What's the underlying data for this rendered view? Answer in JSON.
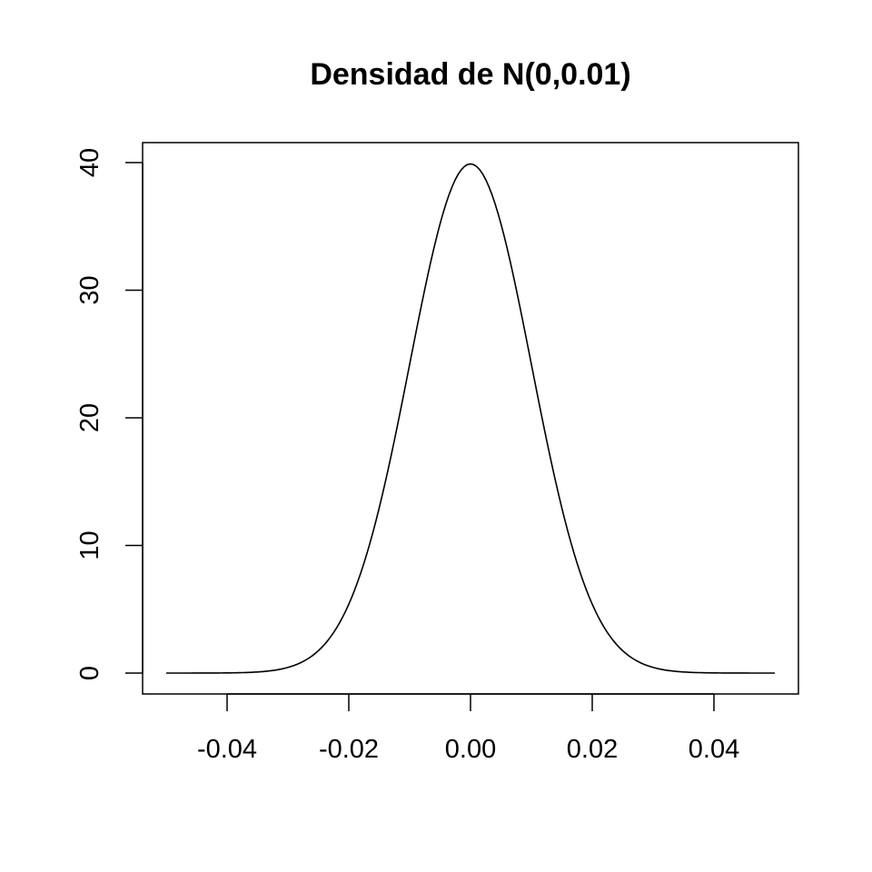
{
  "chart_data": {
    "type": "line",
    "title": "Densidad de N(0,0.01)",
    "xlabel": "",
    "ylabel": "",
    "distribution": {
      "mean": 0,
      "sd": 0.01
    },
    "xlim": [
      -0.05,
      0.05
    ],
    "ylim": [
      0,
      40
    ],
    "x_ticks": [
      -0.04,
      -0.02,
      0.0,
      0.02,
      0.04
    ],
    "x_tick_labels": [
      "-0.04",
      "-0.02",
      "0.00",
      "0.02",
      "0.04"
    ],
    "y_ticks": [
      0,
      10,
      20,
      30,
      40
    ],
    "y_tick_labels": [
      "0",
      "10",
      "20",
      "30",
      "40"
    ],
    "grid": false,
    "series": [
      {
        "x": [
          -0.05,
          -0.045,
          -0.04,
          -0.035,
          -0.03,
          -0.025,
          -0.02,
          -0.015,
          -0.01,
          -0.005,
          0.0,
          0.005,
          0.01,
          0.015,
          0.02,
          0.025,
          0.03,
          0.035,
          0.04,
          0.045,
          0.05
        ],
        "y": [
          0.0001,
          0.0016,
          0.0134,
          0.0873,
          0.4432,
          1.7528,
          5.3991,
          12.9518,
          24.1971,
          35.2065,
          39.8942,
          35.2065,
          24.1971,
          12.9518,
          5.3991,
          1.7528,
          0.4432,
          0.0873,
          0.0134,
          0.0016,
          0.0001
        ]
      }
    ]
  }
}
